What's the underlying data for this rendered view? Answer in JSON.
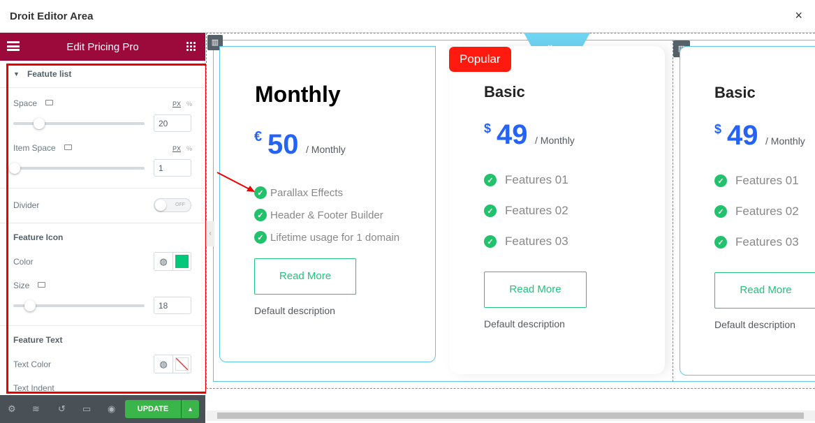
{
  "window": {
    "title": "Droit Editor Area",
    "close_icon": "×"
  },
  "panel": {
    "title": "Edit Pricing Pro",
    "section": "Featute list",
    "space": {
      "label": "Space",
      "unit_px": "PX",
      "unit_pct": "%",
      "value": "20",
      "slider_fraction": 0.2
    },
    "item_space": {
      "label": "Item Space",
      "unit_px": "PX",
      "unit_pct": "%",
      "value": "1",
      "slider_fraction": 0.0
    },
    "divider": {
      "label": "Divider",
      "state": "OFF"
    },
    "feature_icon": {
      "title": "Feature Icon",
      "color_label": "Color",
      "color": "#00c878",
      "size_label": "Size",
      "size": "18",
      "slider_fraction": 0.12
    },
    "feature_text": {
      "title": "Feature Text",
      "text_color_label": "Text Color"
    },
    "text_indent": "Text Indent",
    "update": "UPDATE"
  },
  "cards": [
    {
      "title": "Monthly",
      "currency": "€",
      "price": "50",
      "period": "/ Monthly",
      "features": [
        "Parallax Effects",
        "Header & Footer Builder",
        "Lifetime usage for 1 domain"
      ],
      "button": "Read More",
      "description": "Default description"
    },
    {
      "badge": "Popular",
      "title": "Basic",
      "currency": "$",
      "price": "49",
      "period": "/ Monthly",
      "features": [
        "Features 01",
        "Features 02",
        "Features 03"
      ],
      "button": "Read More",
      "description": "Default description"
    },
    {
      "title": "Basic",
      "currency": "$",
      "price": "49",
      "period": "/ Monthly",
      "features": [
        "Features 01",
        "Features 02",
        "Features 03"
      ],
      "button": "Read More",
      "description": "Default description"
    }
  ],
  "colors": {
    "panel_header": "#9b0a3a",
    "accent_green": "#39b54a",
    "price_blue": "#2463f5",
    "badge_red": "#ff1a10",
    "check_green": "#21c26b"
  }
}
